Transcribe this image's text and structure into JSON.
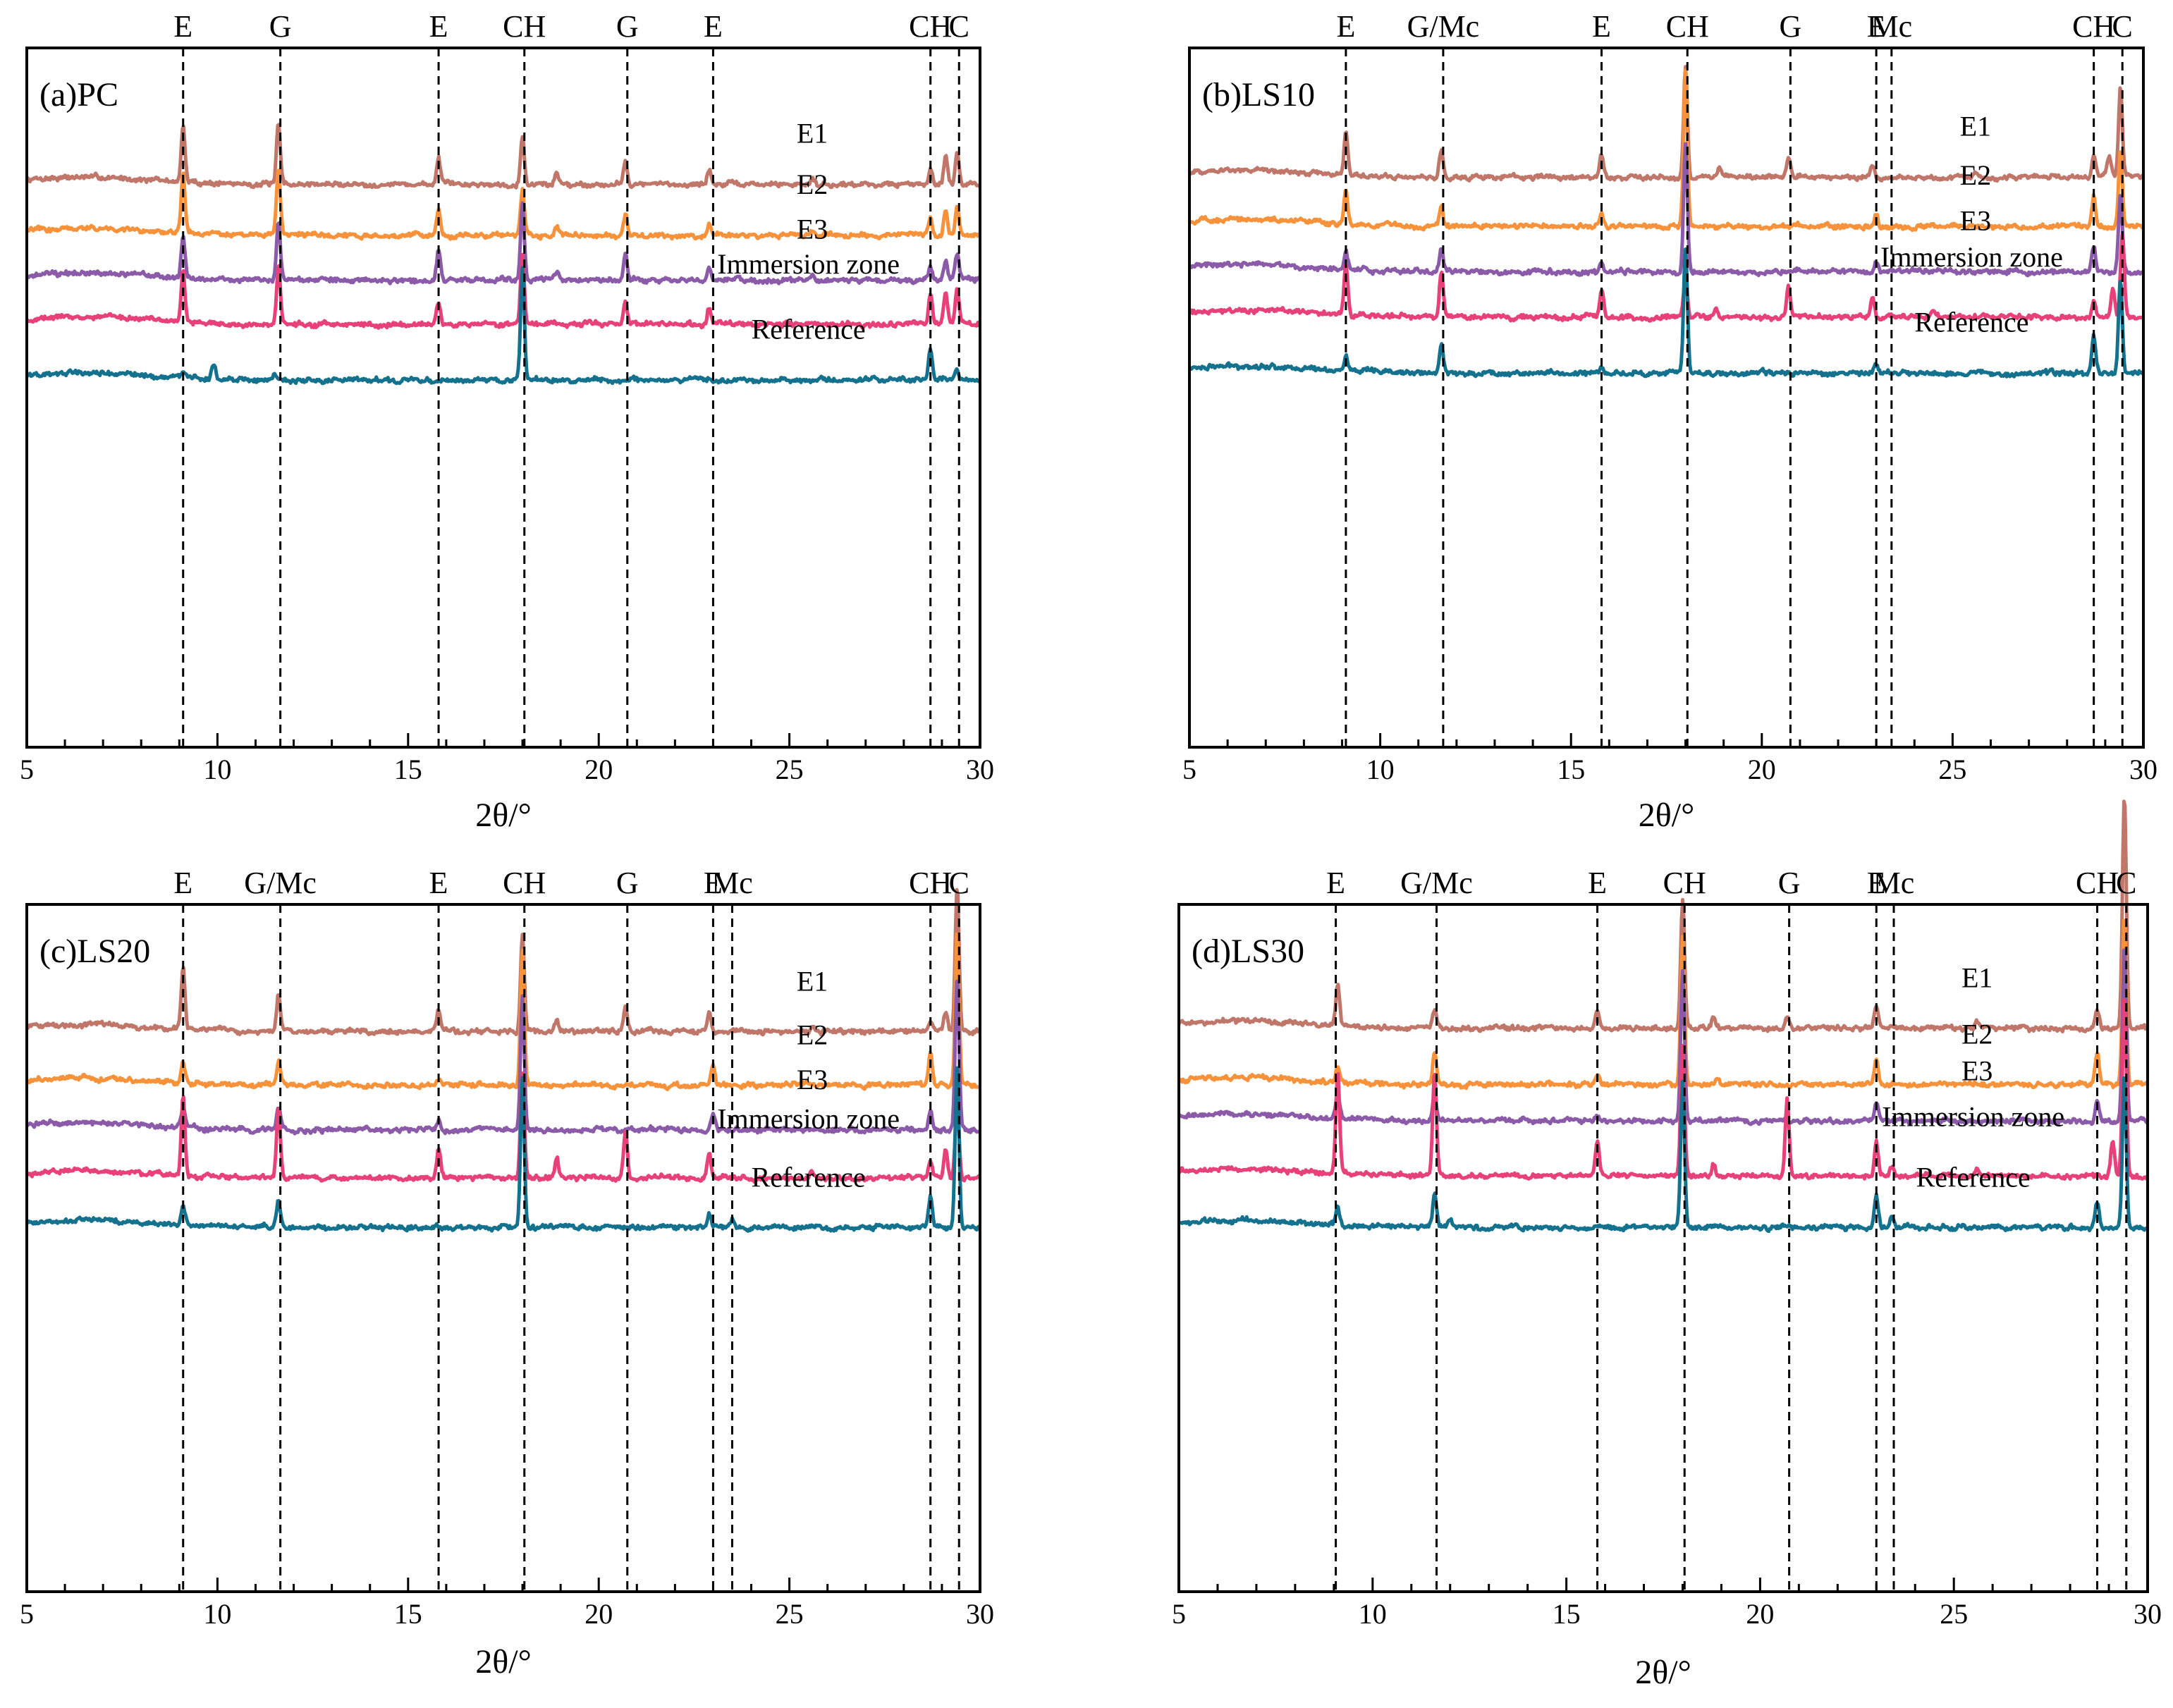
{
  "figure": {
    "xlabel": "2θ/°",
    "xlim": [
      5,
      30
    ],
    "xticks": [
      "5",
      "10",
      "15",
      "20",
      "25",
      "30"
    ],
    "series_colors": {
      "E1": "#c0776a",
      "E2": "#f7913a",
      "E3": "#8b5aa8",
      "Immersion zone": "#e8417a",
      "Reference": "#14728f"
    }
  },
  "chart_data": [
    {
      "type": "line",
      "title": "(a)PC",
      "xlabel": "2θ/°",
      "xlim": [
        5,
        30
      ],
      "series": [
        {
          "name": "E1",
          "peaks": [
            [
              9.1,
              0.95
            ],
            [
              11.6,
              1.0
            ],
            [
              15.8,
              0.45
            ],
            [
              18.0,
              0.8
            ],
            [
              18.9,
              0.2
            ],
            [
              20.7,
              0.4
            ],
            [
              22.9,
              0.25
            ],
            [
              25.6,
              0.1
            ],
            [
              28.7,
              0.3
            ],
            [
              29.1,
              0.5
            ],
            [
              29.4,
              0.55
            ]
          ]
        },
        {
          "name": "E2",
          "peaks": [
            [
              9.1,
              1.0
            ],
            [
              11.6,
              1.05
            ],
            [
              15.8,
              0.45
            ],
            [
              18.0,
              0.75
            ],
            [
              18.9,
              0.15
            ],
            [
              20.7,
              0.35
            ],
            [
              22.9,
              0.2
            ],
            [
              25.6,
              0.1
            ],
            [
              28.7,
              0.3
            ],
            [
              29.1,
              0.45
            ],
            [
              29.4,
              0.5
            ]
          ]
        },
        {
          "name": "E3",
          "peaks": [
            [
              9.1,
              0.7
            ],
            [
              11.6,
              1.0
            ],
            [
              15.8,
              0.5
            ],
            [
              18.0,
              1.3
            ],
            [
              18.9,
              0.15
            ],
            [
              20.7,
              0.45
            ],
            [
              22.9,
              0.25
            ],
            [
              25.6,
              0.1
            ],
            [
              28.7,
              0.2
            ],
            [
              29.1,
              0.35
            ],
            [
              29.4,
              0.45
            ]
          ]
        },
        {
          "name": "Immersion zone",
          "peaks": [
            [
              9.1,
              0.85
            ],
            [
              11.6,
              1.0
            ],
            [
              15.8,
              0.35
            ],
            [
              18.0,
              1.15
            ],
            [
              20.7,
              0.4
            ],
            [
              22.9,
              0.3
            ],
            [
              28.7,
              0.55
            ],
            [
              29.1,
              0.55
            ],
            [
              29.4,
              0.6
            ]
          ]
        },
        {
          "name": "Reference",
          "peaks": [
            [
              9.1,
              0.1
            ],
            [
              9.9,
              0.25
            ],
            [
              11.5,
              0.08
            ],
            [
              18.0,
              1.9
            ],
            [
              28.7,
              0.55
            ],
            [
              29.4,
              0.15
            ]
          ]
        }
      ],
      "phase_lines": [
        {
          "label": "E",
          "x": 9.1
        },
        {
          "label": "G",
          "x": 11.65
        },
        {
          "label": "E",
          "x": 15.8
        },
        {
          "label": "CH",
          "x": 18.05
        },
        {
          "label": "G",
          "x": 20.75
        },
        {
          "label": "E",
          "x": 23.0
        },
        {
          "label": "CH",
          "x": 28.7
        },
        {
          "label": "C",
          "x": 29.45
        }
      ]
    },
    {
      "type": "line",
      "title": "(b)LS10",
      "xlabel": "2θ/°",
      "xlim": [
        5,
        30
      ],
      "series": [
        {
          "name": "E1",
          "peaks": [
            [
              9.1,
              0.75
            ],
            [
              11.6,
              0.45
            ],
            [
              15.8,
              0.4
            ],
            [
              18.0,
              1.9
            ],
            [
              18.9,
              0.15
            ],
            [
              20.7,
              0.3
            ],
            [
              22.9,
              0.25
            ],
            [
              25.6,
              0.1
            ],
            [
              28.7,
              0.35
            ],
            [
              29.1,
              0.35
            ],
            [
              29.4,
              1.5
            ]
          ]
        },
        {
          "name": "E2",
          "peaks": [
            [
              9.1,
              0.55
            ],
            [
              11.6,
              0.35
            ],
            [
              15.8,
              0.2
            ],
            [
              18.0,
              2.6
            ],
            [
              23.0,
              0.2
            ],
            [
              28.7,
              0.5
            ],
            [
              29.4,
              1.3
            ]
          ]
        },
        {
          "name": "E3",
          "peaks": [
            [
              9.1,
              0.3
            ],
            [
              11.6,
              0.4
            ],
            [
              15.8,
              0.15
            ],
            [
              18.0,
              2.2
            ],
            [
              23.0,
              0.2
            ],
            [
              28.7,
              0.45
            ],
            [
              29.4,
              1.3
            ]
          ]
        },
        {
          "name": "Immersion zone",
          "peaks": [
            [
              9.1,
              0.85
            ],
            [
              11.6,
              0.8
            ],
            [
              15.8,
              0.45
            ],
            [
              18.0,
              0.7
            ],
            [
              18.8,
              0.15
            ],
            [
              20.7,
              0.55
            ],
            [
              22.9,
              0.35
            ],
            [
              24.5,
              0.1
            ],
            [
              28.7,
              0.3
            ],
            [
              29.2,
              0.5
            ],
            [
              29.45,
              1.4
            ]
          ]
        },
        {
          "name": "Reference",
          "peaks": [
            [
              9.1,
              0.25
            ],
            [
              11.6,
              0.45
            ],
            [
              15.8,
              0.1
            ],
            [
              18.0,
              2.1
            ],
            [
              23.0,
              0.15
            ],
            [
              28.7,
              0.65
            ],
            [
              29.4,
              1.6
            ]
          ]
        }
      ],
      "phase_lines": [
        {
          "label": "E",
          "x": 9.1
        },
        {
          "label": "G/Mc",
          "x": 11.65
        },
        {
          "label": "E",
          "x": 15.8
        },
        {
          "label": "CH",
          "x": 18.05
        },
        {
          "label": "G",
          "x": 20.75
        },
        {
          "label": "E",
          "x": 23.0
        },
        {
          "label": "Mc",
          "x": 23.4
        },
        {
          "label": "CH",
          "x": 28.7
        },
        {
          "label": "C",
          "x": 29.45
        }
      ]
    },
    {
      "type": "line",
      "title": "(c)LS20",
      "xlabel": "2θ/°",
      "xlim": [
        5,
        30
      ],
      "series": [
        {
          "name": "E1",
          "peaks": [
            [
              9.1,
              1.05
            ],
            [
              11.6,
              0.65
            ],
            [
              15.8,
              0.35
            ],
            [
              18.0,
              1.7
            ],
            [
              18.9,
              0.2
            ],
            [
              20.7,
              0.4
            ],
            [
              22.9,
              0.35
            ],
            [
              25.6,
              0.1
            ],
            [
              28.7,
              0.2
            ],
            [
              29.1,
              0.3
            ],
            [
              29.4,
              2.5
            ]
          ]
        },
        {
          "name": "E2",
          "peaks": [
            [
              9.1,
              0.35
            ],
            [
              11.6,
              0.4
            ],
            [
              15.8,
              0.1
            ],
            [
              18.0,
              2.3
            ],
            [
              23.0,
              0.35
            ],
            [
              28.7,
              0.55
            ],
            [
              29.4,
              2.6
            ]
          ]
        },
        {
          "name": "E3",
          "peaks": [
            [
              9.1,
              0.35
            ],
            [
              11.6,
              0.4
            ],
            [
              15.8,
              0.15
            ],
            [
              18.0,
              2.3
            ],
            [
              23.0,
              0.3
            ],
            [
              28.7,
              0.35
            ],
            [
              29.4,
              2.6
            ]
          ]
        },
        {
          "name": "Immersion zone",
          "peaks": [
            [
              9.1,
              1.35
            ],
            [
              11.6,
              1.2
            ],
            [
              15.8,
              0.5
            ],
            [
              18.0,
              1.8
            ],
            [
              18.9,
              0.35
            ],
            [
              20.7,
              0.8
            ],
            [
              22.9,
              0.45
            ],
            [
              25.6,
              0.1
            ],
            [
              28.7,
              0.3
            ],
            [
              29.1,
              0.5
            ],
            [
              29.4,
              1.3
            ]
          ]
        },
        {
          "name": "Reference",
          "peaks": [
            [
              9.1,
              0.3
            ],
            [
              11.6,
              0.45
            ],
            [
              18.0,
              2.6
            ],
            [
              22.9,
              0.25
            ],
            [
              23.5,
              0.15
            ],
            [
              28.7,
              0.5
            ],
            [
              29.4,
              2.8
            ]
          ]
        }
      ],
      "phase_lines": [
        {
          "label": "E",
          "x": 9.1
        },
        {
          "label": "G/Mc",
          "x": 11.65
        },
        {
          "label": "E",
          "x": 15.8
        },
        {
          "label": "CH",
          "x": 18.05
        },
        {
          "label": "G",
          "x": 20.75
        },
        {
          "label": "E",
          "x": 23.0
        },
        {
          "label": "Mc",
          "x": 23.5
        },
        {
          "label": "CH",
          "x": 28.7
        },
        {
          "label": "C",
          "x": 29.45
        }
      ]
    },
    {
      "type": "line",
      "title": "(d)LS30",
      "xlabel": "2θ/°",
      "xlim": [
        5,
        30
      ],
      "series": [
        {
          "name": "E1",
          "peaks": [
            [
              9.1,
              0.75
            ],
            [
              11.6,
              0.3
            ],
            [
              15.8,
              0.3
            ],
            [
              18.0,
              2.2
            ],
            [
              18.8,
              0.2
            ],
            [
              20.7,
              0.2
            ],
            [
              23.0,
              0.4
            ],
            [
              25.6,
              0.1
            ],
            [
              28.7,
              0.3
            ],
            [
              29.4,
              4.0
            ]
          ]
        },
        {
          "name": "E2",
          "peaks": [
            [
              9.1,
              0.25
            ],
            [
              11.6,
              0.55
            ],
            [
              15.8,
              0.15
            ],
            [
              18.0,
              2.5
            ],
            [
              18.9,
              0.1
            ],
            [
              23.0,
              0.45
            ],
            [
              28.7,
              0.55
            ],
            [
              29.4,
              2.9
            ]
          ]
        },
        {
          "name": "E3",
          "peaks": [
            [
              9.1,
              0.4
            ],
            [
              11.6,
              0.45
            ],
            [
              15.8,
              0.1
            ],
            [
              18.0,
              2.6
            ],
            [
              23.0,
              0.35
            ],
            [
              28.7,
              0.35
            ],
            [
              29.4,
              3.0
            ]
          ]
        },
        {
          "name": "Immersion zone",
          "peaks": [
            [
              9.1,
              1.7
            ],
            [
              11.6,
              1.75
            ],
            [
              15.8,
              0.6
            ],
            [
              18.0,
              2.2
            ],
            [
              18.8,
              0.2
            ],
            [
              20.7,
              1.35
            ],
            [
              23.0,
              0.6
            ],
            [
              23.4,
              0.15
            ],
            [
              25.6,
              0.1
            ],
            [
              29.1,
              0.6
            ],
            [
              29.4,
              3.1
            ]
          ]
        },
        {
          "name": "Reference",
          "peaks": [
            [
              9.1,
              0.3
            ],
            [
              11.6,
              0.55
            ],
            [
              12.0,
              0.15
            ],
            [
              18.0,
              2.5
            ],
            [
              23.0,
              0.55
            ],
            [
              23.4,
              0.2
            ],
            [
              28.7,
              0.45
            ],
            [
              29.4,
              2.6
            ]
          ]
        }
      ],
      "phase_lines": [
        {
          "label": "E",
          "x": 9.05
        },
        {
          "label": "G/Mc",
          "x": 11.65
        },
        {
          "label": "E",
          "x": 15.8
        },
        {
          "label": "CH",
          "x": 18.05
        },
        {
          "label": "G",
          "x": 20.75
        },
        {
          "label": "E",
          "x": 23.0
        },
        {
          "label": "Mc",
          "x": 23.45
        },
        {
          "label": "CH",
          "x": 28.7
        },
        {
          "label": "C",
          "x": 29.45
        }
      ]
    }
  ]
}
